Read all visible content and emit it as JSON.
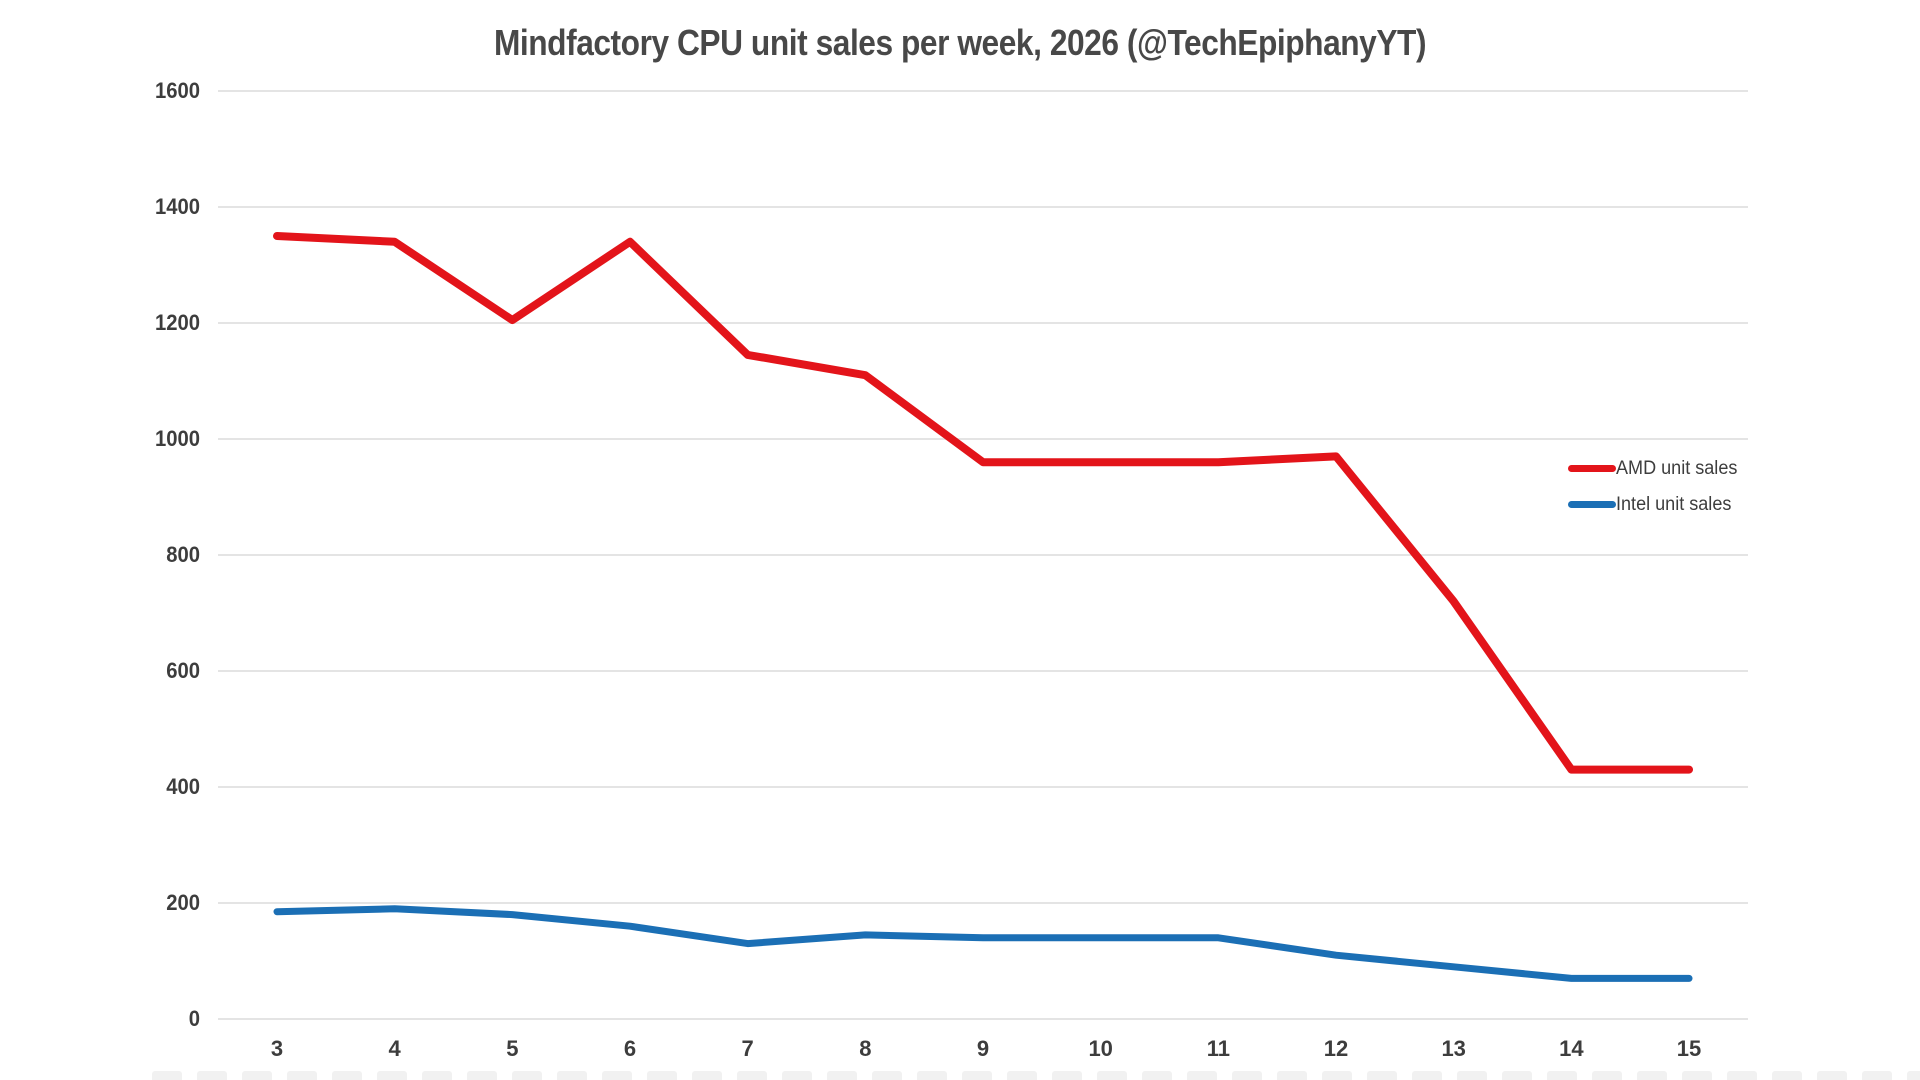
{
  "chart_data": {
    "type": "line",
    "title": "Mindfactory CPU unit sales per week, 2026 (@TechEpiphanyYT)",
    "x": [
      3,
      4,
      5,
      6,
      7,
      8,
      9,
      10,
      11,
      12,
      13,
      14,
      15
    ],
    "xlabel": "",
    "ylabel": "",
    "ylim": [
      0,
      1600
    ],
    "yticks": [
      0,
      200,
      400,
      600,
      800,
      1000,
      1200,
      1400,
      1600
    ],
    "grid": true,
    "legend_position": "right",
    "series": [
      {
        "name": "AMD unit sales",
        "color": "#e3141a",
        "values": [
          1350,
          1340,
          1205,
          1340,
          1145,
          1110,
          960,
          960,
          960,
          970,
          720,
          430,
          430
        ]
      },
      {
        "name": "Intel unit sales",
        "color": "#1b6fb5",
        "values": [
          185,
          190,
          180,
          160,
          130,
          145,
          140,
          140,
          140,
          110,
          90,
          70,
          70
        ]
      }
    ]
  },
  "colors": {
    "grid": "#e4e4e4",
    "tick_label": "#3d3d3d",
    "title": "#484848",
    "bottom_row": "#f1f1f1"
  }
}
